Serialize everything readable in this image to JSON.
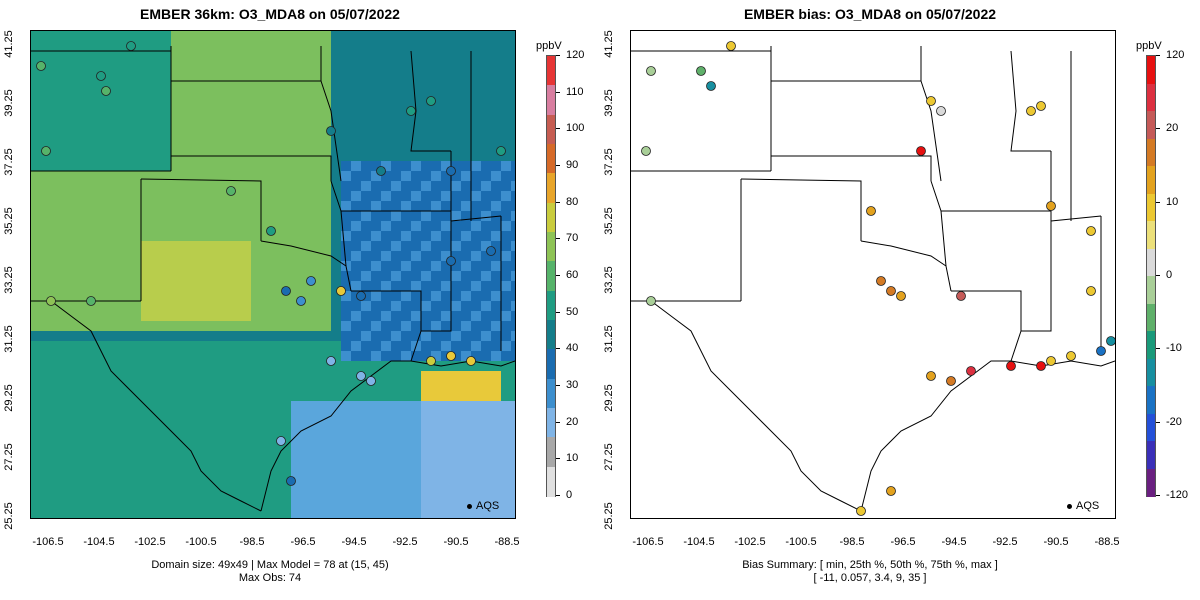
{
  "left_map": {
    "title": "EMBER 36km: O3_MDA8 on 05/07/2022",
    "legend_marker": "AQS",
    "footer_line1": "Domain size: 49x49 | Max Model = 78 at (15, 45)",
    "footer_line2": "Max Obs: 74",
    "colorbar_unit": "ppbV",
    "colorbar_labels": [
      "120",
      "110",
      "100",
      "90",
      "80",
      "70",
      "60",
      "50",
      "40",
      "30",
      "20",
      "10",
      "0"
    ],
    "colorbar_colors": [
      "#e0e0e0",
      "#a8a8a8",
      "#7fb4e6",
      "#3d8fce",
      "#1a6cb0",
      "#147d8a",
      "#1f9c82",
      "#56b36a",
      "#8ec356",
      "#c9cc3e",
      "#e8a52a",
      "#d66a28",
      "#c65d52",
      "#d87ea0",
      "#e63535"
    ]
  },
  "right_map": {
    "title": "EMBER bias: O3_MDA8 on 05/07/2022",
    "legend_marker": "AQS",
    "footer_line1": "Bias Summary: [ min, 25th %, 50th %, 75th %, max ]",
    "footer_line2": "[ -11,   0.057,   3.4,   9,   35 ]",
    "colorbar_unit": "ppbV",
    "colorbar_labels": [
      "120",
      "20",
      "10",
      "0",
      "-10",
      "-20",
      "-120"
    ],
    "colorbar_colors": [
      "#6a2080",
      "#3a2fb8",
      "#2450d8",
      "#1a72c4",
      "#178fa0",
      "#1a9a7a",
      "#5fb06a",
      "#a9cf98",
      "#dadada",
      "#ece07a",
      "#ecc832",
      "#e3a21e",
      "#d47a24",
      "#c55a58",
      "#dc3040",
      "#e61010"
    ]
  },
  "axes": {
    "y_ticks": [
      "41.25",
      "39.25",
      "37.25",
      "35.25",
      "33.25",
      "31.25",
      "29.25",
      "27.25",
      "25.25"
    ],
    "x_ticks": [
      "-106.5",
      "-104.5",
      "-102.5",
      "-100.5",
      "-98.5",
      "-96.5",
      "-94.5",
      "-92.5",
      "-90.5",
      "-88.5"
    ]
  }
}
